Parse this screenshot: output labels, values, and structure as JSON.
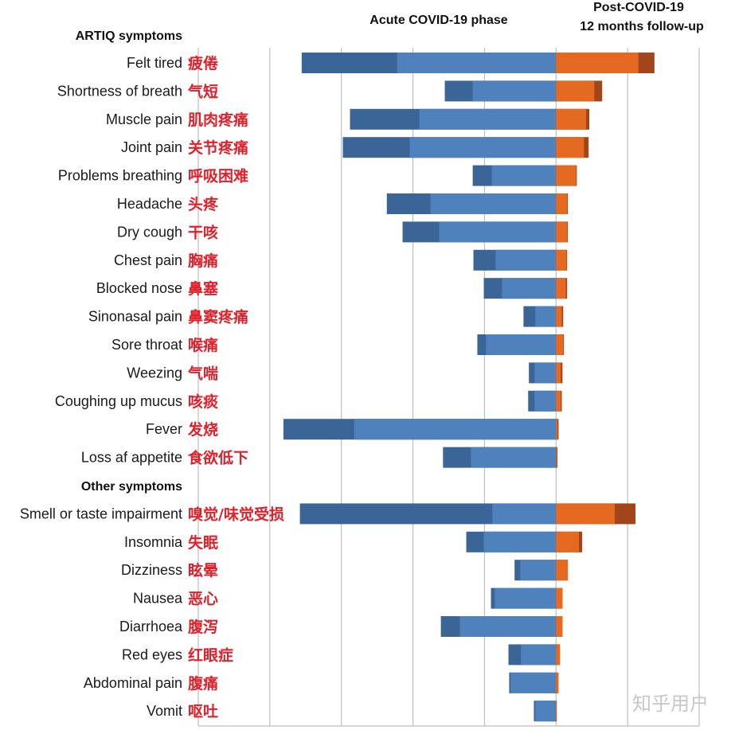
{
  "chart_data": {
    "type": "bar",
    "orientation": "horizontal-diverging-stacked",
    "title_left": "Acute COVID-19 phase",
    "title_right_line1": "Post-COVID-19",
    "title_right_line2": "12 months follow-up",
    "xlim": [
      -100,
      40
    ],
    "x_grid_step": 20,
    "grid": true,
    "tick_labels_visible": false,
    "colors": {
      "acute_light": "#4f81bd",
      "acute_dark": "#3b6596",
      "post_light": "#e46a22",
      "post_dark": "#a0461a",
      "label_cn": "#e0202a",
      "grid": "#bfbfbf"
    },
    "groups": [
      {
        "header": "ARTIQ symptoms",
        "rows": [
          {
            "en": "Felt tired",
            "cn": "疲倦",
            "acute_light": 44.4,
            "acute_total": 71.1,
            "post_light": 23.0,
            "post_total": 27.5
          },
          {
            "en": "Shortness of breath",
            "cn": "气短",
            "acute_light": 23.3,
            "acute_total": 31.1,
            "post_light": 10.7,
            "post_total": 12.9
          },
          {
            "en": "Muscle pain",
            "cn": "肌肉疼痛",
            "acute_light": 38.2,
            "acute_total": 57.6,
            "post_light": 8.4,
            "post_total": 9.3
          },
          {
            "en": "Joint pain",
            "cn": "关节疼痛",
            "acute_light": 40.9,
            "acute_total": 59.6,
            "post_light": 7.8,
            "post_total": 9.1
          },
          {
            "en": "Problems breathing",
            "cn": "呼吸困难",
            "acute_light": 18.0,
            "acute_total": 23.3,
            "post_light": 5.6,
            "post_total": 5.8
          },
          {
            "en": "Headache",
            "cn": "头疼",
            "acute_light": 35.1,
            "acute_total": 47.3,
            "post_light": 3.1,
            "post_total": 3.3
          },
          {
            "en": "Dry cough",
            "cn": "干咳",
            "acute_light": 32.7,
            "acute_total": 42.9,
            "post_light": 3.1,
            "post_total": 3.3
          },
          {
            "en": "Chest pain",
            "cn": "胸痛",
            "acute_light": 16.9,
            "acute_total": 23.1,
            "post_light": 2.9,
            "post_total": 3.1
          },
          {
            "en": "Blocked nose",
            "cn": "鼻塞",
            "acute_light": 15.1,
            "acute_total": 20.2,
            "post_light": 2.7,
            "post_total": 3.1
          },
          {
            "en": "Sinonasal pain",
            "cn": "鼻窦疼痛",
            "acute_light": 5.8,
            "acute_total": 9.1,
            "post_light": 1.6,
            "post_total": 2.0
          },
          {
            "en": "Sore throat",
            "cn": "喉痛",
            "acute_light": 19.6,
            "acute_total": 22.0,
            "post_light": 2.0,
            "post_total": 2.2
          },
          {
            "en": "Weezing",
            "cn": "气喘",
            "acute_light": 6.0,
            "acute_total": 7.6,
            "post_light": 1.3,
            "post_total": 1.8
          },
          {
            "en": "Coughing up mucus",
            "cn": "咳痰",
            "acute_light": 6.0,
            "acute_total": 7.8,
            "post_light": 1.3,
            "post_total": 1.6
          },
          {
            "en": "Fever",
            "cn": "发烧",
            "acute_light": 56.4,
            "acute_total": 76.2,
            "post_light": 0.4,
            "post_total": 0.7
          },
          {
            "en": "Loss af appetite",
            "cn": "食欲低下",
            "acute_light": 23.8,
            "acute_total": 31.6,
            "post_light": 0.2,
            "post_total": 0.4
          }
        ]
      },
      {
        "header": "Other symptoms",
        "rows": [
          {
            "en": "Smell or taste impairment",
            "cn": "嗅觉/味觉受损",
            "acute_light": 17.8,
            "acute_total": 71.6,
            "post_light": 16.4,
            "post_total": 22.2
          },
          {
            "en": "Insomnia",
            "cn": "失眠",
            "acute_light": 20.2,
            "acute_total": 25.1,
            "post_light": 6.4,
            "post_total": 7.3
          },
          {
            "en": "Dizziness",
            "cn": "眩晕",
            "acute_light": 10.0,
            "acute_total": 11.6,
            "post_light": 3.3,
            "post_total": 3.3
          },
          {
            "en": "Nausea",
            "cn": "恶心",
            "acute_light": 17.1,
            "acute_total": 18.2,
            "post_light": 1.8,
            "post_total": 1.8
          },
          {
            "en": "Diarrhoea",
            "cn": "腹泻",
            "acute_light": 26.9,
            "acute_total": 32.2,
            "post_light": 1.8,
            "post_total": 1.8
          },
          {
            "en": "Red eyes",
            "cn": "红眼症",
            "acute_light": 9.8,
            "acute_total": 13.3,
            "post_light": 1.1,
            "post_total": 1.1
          },
          {
            "en": "Abdominal pain",
            "cn": "腹痛",
            "acute_light": 12.7,
            "acute_total": 13.1,
            "post_light": 0.7,
            "post_total": 0.7
          },
          {
            "en": "Vomit",
            "cn": "呕吐",
            "acute_light": 5.8,
            "acute_total": 6.2,
            "post_light": 0.2,
            "post_total": 0.2
          }
        ]
      }
    ]
  },
  "watermark": "知乎用户"
}
